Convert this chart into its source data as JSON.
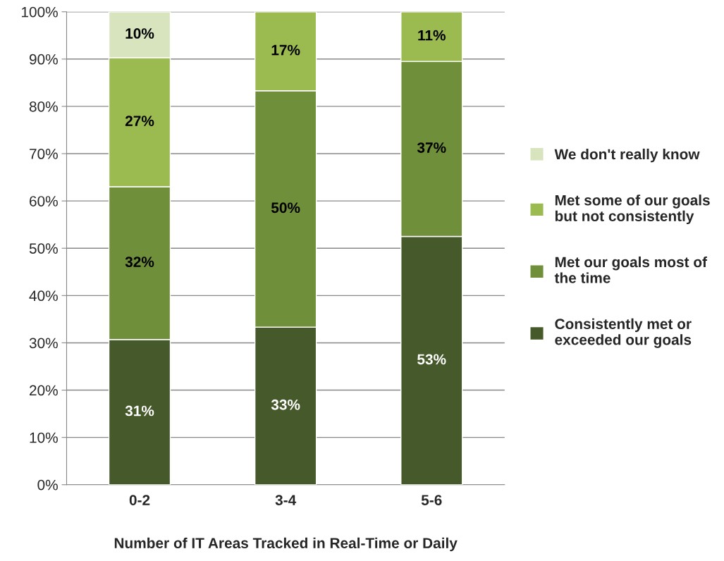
{
  "chart_data": {
    "type": "bar",
    "stacked": true,
    "xlabel": "Number of IT Areas Tracked in Real-Time or Daily",
    "categories": [
      "0-2",
      "3-4",
      "5-6"
    ],
    "series": [
      {
        "name": "Consistently met or exceeded our goals",
        "color": "#46592a",
        "values": [
          30.7,
          33.3,
          52.5
        ],
        "value_labels": [
          "31%",
          "33%",
          "53%"
        ]
      },
      {
        "name": "Met our goals most of the time",
        "color": "#6f8f3a",
        "values": [
          32.3,
          50,
          37
        ],
        "value_labels": [
          "32%",
          "50%",
          "37%"
        ]
      },
      {
        "name": "Met some of our goals but not consistently",
        "color": "#9bbb50",
        "values": [
          27.3,
          16.7,
          10.5
        ],
        "value_labels": [
          "27%",
          "17%",
          "11%"
        ]
      },
      {
        "name": "We don't really know",
        "color": "#d7e4bd",
        "values": [
          9.7,
          null,
          null
        ],
        "value_labels": [
          "10%",
          null,
          null
        ]
      }
    ],
    "ylim": [
      0,
      100
    ],
    "yticks": [
      {
        "value": 0,
        "label": "0%"
      },
      {
        "value": 10,
        "label": "10%"
      },
      {
        "value": 20,
        "label": "20%"
      },
      {
        "value": 30,
        "label": "30%"
      },
      {
        "value": 40,
        "label": "40%"
      },
      {
        "value": 50,
        "label": "50%"
      },
      {
        "value": 60,
        "label": "60%"
      },
      {
        "value": 70,
        "label": "70%"
      },
      {
        "value": 80,
        "label": "80%"
      },
      {
        "value": 90,
        "label": "90%"
      },
      {
        "value": 100,
        "label": "100%"
      }
    ],
    "grid": "y",
    "legend": "right"
  }
}
